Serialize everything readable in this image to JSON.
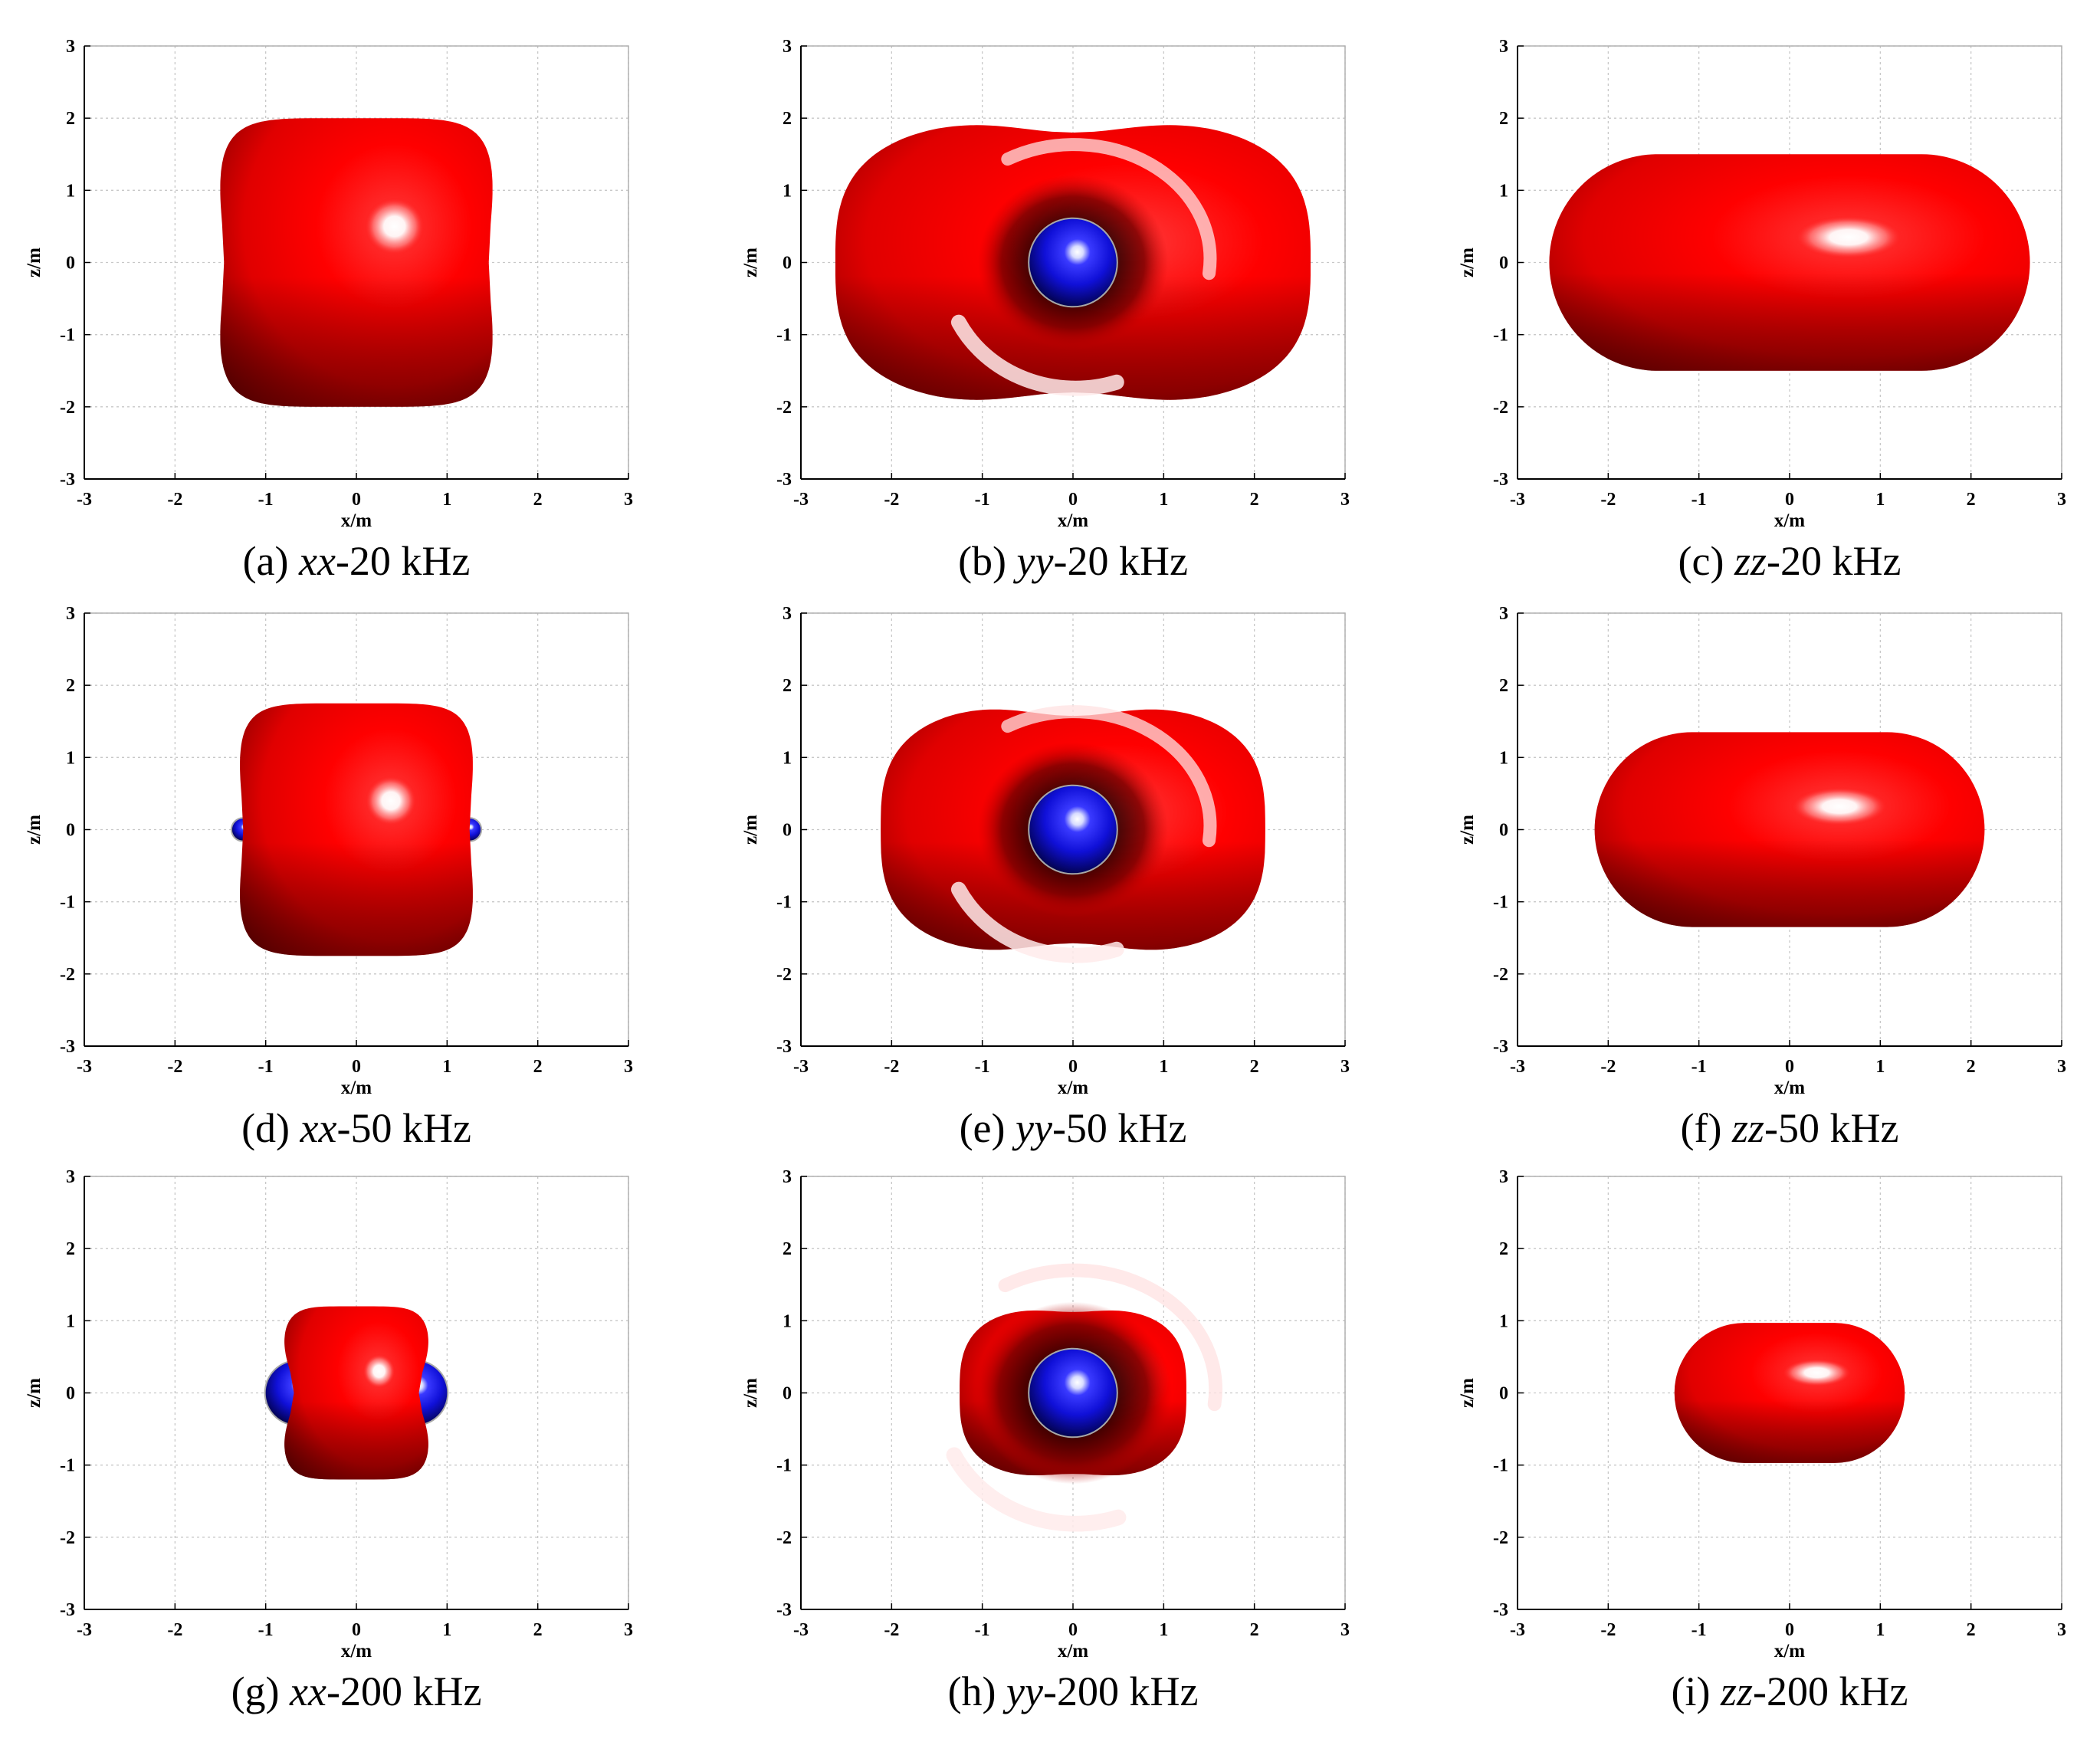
{
  "figure": {
    "colors": {
      "positive_lobe": "#ff0000",
      "negative_lobe": "#1010d8",
      "grid": "#c8c8c8",
      "axis": "#000000"
    }
  },
  "chart_data": [
    {
      "type": "surface-section",
      "panel": "a",
      "component": "xx",
      "frequency": "20 kHz",
      "caption_prefix": "(a) ",
      "caption_italic": "xx",
      "caption_suffix": "-20 kHz",
      "xlabel": "x/m",
      "ylabel": "z/m",
      "xlim": [
        -3,
        3
      ],
      "ylim": [
        -3,
        3
      ],
      "xticks": [
        -3,
        -2,
        -1,
        0,
        1,
        2,
        3
      ],
      "yticks": [
        -3,
        -2,
        -1,
        0,
        1,
        2,
        3
      ],
      "grid": true,
      "shapes": [
        {
          "kind": "superellipse",
          "color": "red",
          "cx": 0,
          "cz": 0,
          "rx": 1.52,
          "rz": 2.0,
          "power": 5.5,
          "waist": 0.04,
          "highlight": [
            0.42,
            0.5
          ]
        }
      ]
    },
    {
      "type": "surface-section",
      "panel": "b",
      "component": "yy",
      "frequency": "20 kHz",
      "caption_prefix": "(b) ",
      "caption_italic": "yy",
      "caption_suffix": "-20 kHz",
      "xlabel": "x/m",
      "ylabel": "z/m",
      "xlim": [
        -3,
        3
      ],
      "ylim": [
        -3,
        3
      ],
      "xticks": [
        -3,
        -2,
        -1,
        0,
        1,
        2,
        3
      ],
      "yticks": [
        -3,
        -2,
        -1,
        0,
        1,
        2,
        3
      ],
      "grid": true,
      "shapes": [
        {
          "kind": "torus",
          "color": "red",
          "cx": 0,
          "cz": 0,
          "rx": 2.62,
          "rz": 2.0,
          "waist": 0.1,
          "hole_r": 0.5,
          "highlight": [
            0.6,
            0.3
          ]
        },
        {
          "kind": "sphere",
          "color": "blue",
          "cx": 0,
          "cz": 0,
          "r": 0.48
        }
      ]
    },
    {
      "type": "surface-section",
      "panel": "c",
      "component": "zz",
      "frequency": "20 kHz",
      "caption_prefix": "(c) ",
      "caption_italic": "zz",
      "caption_suffix": "-20 kHz",
      "xlabel": "x/m",
      "ylabel": "z/m",
      "xlim": [
        -3,
        3
      ],
      "ylim": [
        -3,
        3
      ],
      "xticks": [
        -3,
        -2,
        -1,
        0,
        1,
        2,
        3
      ],
      "yticks": [
        -3,
        -2,
        -1,
        0,
        1,
        2,
        3
      ],
      "grid": true,
      "shapes": [
        {
          "kind": "capsule",
          "color": "red",
          "cx": 0,
          "cz": 0,
          "rx": 2.65,
          "rz": 1.5,
          "highlight": [
            0.65,
            0.35
          ]
        }
      ]
    },
    {
      "type": "surface-section",
      "panel": "d",
      "component": "xx",
      "frequency": "50 kHz",
      "caption_prefix": "(d) ",
      "caption_italic": "xx",
      "caption_suffix": "-50 kHz",
      "xlabel": "x/m",
      "ylabel": "z/m",
      "xlim": [
        -3,
        3
      ],
      "ylim": [
        -3,
        3
      ],
      "xticks": [
        -3,
        -2,
        -1,
        0,
        1,
        2,
        3
      ],
      "yticks": [
        -3,
        -2,
        -1,
        0,
        1,
        2,
        3
      ],
      "grid": true,
      "shapes": [
        {
          "kind": "sphere",
          "color": "blue",
          "cx": -1.25,
          "cz": 0,
          "r": 0.12
        },
        {
          "kind": "sphere",
          "color": "blue",
          "cx": 1.25,
          "cz": 0,
          "r": 0.12
        },
        {
          "kind": "superellipse",
          "color": "red",
          "cx": 0,
          "cz": 0,
          "rx": 1.3,
          "rz": 1.75,
          "power": 5.5,
          "waist": 0.04,
          "highlight": [
            0.38,
            0.4
          ]
        }
      ]
    },
    {
      "type": "surface-section",
      "panel": "e",
      "component": "yy",
      "frequency": "50 kHz",
      "caption_prefix": "(e) ",
      "caption_italic": "yy",
      "caption_suffix": "-50 kHz",
      "xlabel": "x/m",
      "ylabel": "z/m",
      "xlim": [
        -3,
        3
      ],
      "ylim": [
        -3,
        3
      ],
      "xticks": [
        -3,
        -2,
        -1,
        0,
        1,
        2,
        3
      ],
      "yticks": [
        -3,
        -2,
        -1,
        0,
        1,
        2,
        3
      ],
      "grid": true,
      "shapes": [
        {
          "kind": "torus",
          "color": "red",
          "cx": 0,
          "cz": 0,
          "rx": 2.12,
          "rz": 1.75,
          "waist": 0.1,
          "hole_r": 0.5,
          "highlight": [
            0.5,
            0.25
          ]
        },
        {
          "kind": "sphere",
          "color": "blue",
          "cx": 0,
          "cz": 0,
          "r": 0.48
        }
      ]
    },
    {
      "type": "surface-section",
      "panel": "f",
      "component": "zz",
      "frequency": "50 kHz",
      "caption_prefix": "(f) ",
      "caption_italic": "zz",
      "caption_suffix": "-50 kHz",
      "xlabel": "x/m",
      "ylabel": "z/m",
      "xlim": [
        -3,
        3
      ],
      "ylim": [
        -3,
        3
      ],
      "xticks": [
        -3,
        -2,
        -1,
        0,
        1,
        2,
        3
      ],
      "yticks": [
        -3,
        -2,
        -1,
        0,
        1,
        2,
        3
      ],
      "grid": true,
      "shapes": [
        {
          "kind": "capsule",
          "color": "red",
          "cx": 0,
          "cz": 0,
          "rx": 2.15,
          "rz": 1.35,
          "highlight": [
            0.55,
            0.32
          ]
        }
      ]
    },
    {
      "type": "surface-section",
      "panel": "g",
      "component": "xx",
      "frequency": "200 kHz",
      "caption_prefix": "(g) ",
      "caption_italic": "xx",
      "caption_suffix": "-200 kHz",
      "xlabel": "x/m",
      "ylabel": "z/m",
      "xlim": [
        -3,
        3
      ],
      "ylim": [
        -3,
        3
      ],
      "xticks": [
        -3,
        -2,
        -1,
        0,
        1,
        2,
        3
      ],
      "yticks": [
        -3,
        -2,
        -1,
        0,
        1,
        2,
        3
      ],
      "grid": true,
      "shapes": [
        {
          "kind": "sphere",
          "color": "blue",
          "cx": -0.65,
          "cz": 0,
          "r": 0.35
        },
        {
          "kind": "sphere",
          "color": "blue",
          "cx": 0.65,
          "cz": 0,
          "r": 0.35
        },
        {
          "kind": "superellipse",
          "color": "red",
          "cx": 0,
          "cz": 0,
          "rx": 0.82,
          "rz": 1.2,
          "power": 5,
          "waist": 0.16,
          "highlight": [
            0.25,
            0.3
          ]
        }
      ]
    },
    {
      "type": "surface-section",
      "panel": "h",
      "component": "yy",
      "frequency": "200 kHz",
      "caption_prefix": "(h) ",
      "caption_italic": "yy",
      "caption_suffix": "-200 kHz",
      "xlabel": "x/m",
      "ylabel": "z/m",
      "xlim": [
        -3,
        3
      ],
      "ylim": [
        -3,
        3
      ],
      "xticks": [
        -3,
        -2,
        -1,
        0,
        1,
        2,
        3
      ],
      "yticks": [
        -3,
        -2,
        -1,
        0,
        1,
        2,
        3
      ],
      "grid": true,
      "shapes": [
        {
          "kind": "torus",
          "color": "red",
          "cx": 0,
          "cz": 0,
          "rx": 1.25,
          "rz": 1.18,
          "waist": 0.05,
          "hole_r": 0.52,
          "highlight": [
            0.35,
            0.2
          ]
        },
        {
          "kind": "sphere",
          "color": "blue",
          "cx": 0,
          "cz": 0,
          "r": 0.48
        }
      ]
    },
    {
      "type": "surface-section",
      "panel": "i",
      "component": "zz",
      "frequency": "200 kHz",
      "caption_prefix": "(i) ",
      "caption_italic": "zz",
      "caption_suffix": "-200 kHz",
      "xlabel": "x/m",
      "ylabel": "z/m",
      "xlim": [
        -3,
        3
      ],
      "ylim": [
        -3,
        3
      ],
      "xticks": [
        -3,
        -2,
        -1,
        0,
        1,
        2,
        3
      ],
      "yticks": [
        -3,
        -2,
        -1,
        0,
        1,
        2,
        3
      ],
      "grid": true,
      "shapes": [
        {
          "kind": "capsule",
          "color": "red",
          "cx": 0,
          "cz": 0,
          "rx": 1.27,
          "rz": 0.97,
          "highlight": [
            0.3,
            0.28
          ]
        }
      ]
    }
  ]
}
